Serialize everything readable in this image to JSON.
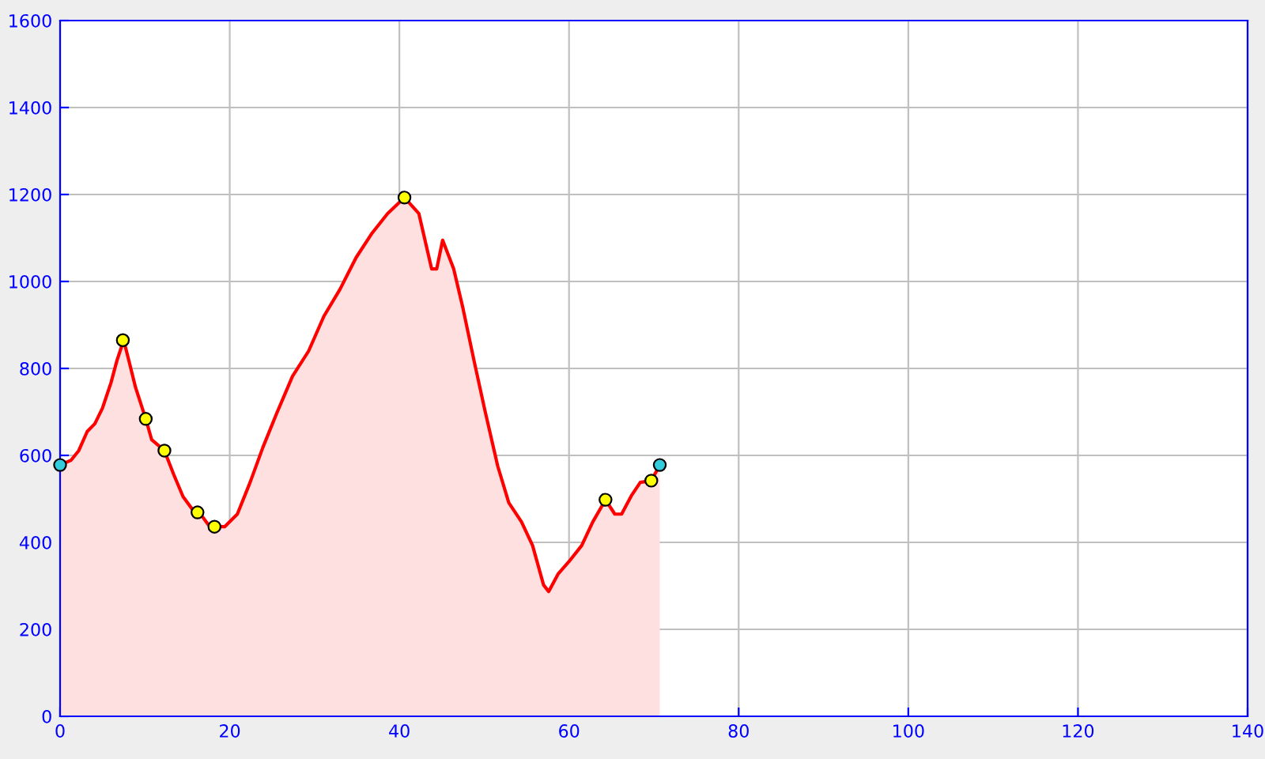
{
  "chart_data": {
    "type": "area",
    "xlim": [
      0,
      140
    ],
    "ylim": [
      0,
      1600
    ],
    "xticks": [
      0,
      20,
      40,
      60,
      80,
      100,
      120,
      140
    ],
    "yticks": [
      0,
      200,
      400,
      600,
      800,
      1000,
      1200,
      1400,
      1600
    ],
    "grid": true,
    "series": [
      {
        "color": "#ff0000",
        "x": [
          0,
          1.3,
          2.2,
          3.2,
          4.1,
          5.0,
          6.0,
          6.7,
          7.5,
          8.2,
          8.9,
          10.1,
          10.8,
          12.3,
          13.4,
          14.5,
          15.7,
          16.4,
          17.5,
          18.3,
          19.4,
          20.9,
          22.4,
          23.9,
          25.5,
          27.4,
          29.3,
          31.1,
          33.0,
          34.9,
          36.7,
          38.6,
          40.6,
          42.3,
          43.8,
          44.4,
          45.1,
          46.4,
          47.5,
          48.8,
          50.1,
          51.6,
          52.9,
          54.4,
          55.7,
          57.0,
          57.6,
          58.7,
          60.0,
          61.5,
          62.8,
          64.3,
          65.4,
          66.2,
          67.4,
          68.4,
          69.7,
          70.7
        ],
        "values": [
          578,
          589,
          611,
          655,
          673,
          709,
          767,
          818,
          865,
          811,
          756,
          684,
          636,
          611,
          556,
          505,
          473,
          469,
          440,
          436,
          436,
          465,
          538,
          618,
          695,
          782,
          840,
          920,
          982,
          1055,
          1109,
          1156,
          1193,
          1156,
          1029,
          1029,
          1095,
          1029,
          938,
          818,
          702,
          575,
          491,
          447,
          393,
          302,
          287,
          327,
          356,
          393,
          447,
          498,
          465,
          465,
          509,
          538,
          542,
          578
        ]
      },
      {
        "type": "scatter",
        "color": "#ffff00",
        "marker": "circle",
        "x": [
          7.4,
          10.1,
          12.3,
          16.2,
          18.2,
          40.6,
          64.3,
          69.7
        ],
        "values": [
          865,
          684,
          611,
          469,
          436,
          1193,
          498,
          542
        ]
      },
      {
        "type": "scatter",
        "color": "#33ccdd",
        "marker": "circle",
        "x": [
          0,
          70.7
        ],
        "values": [
          578,
          578
        ]
      }
    ]
  }
}
